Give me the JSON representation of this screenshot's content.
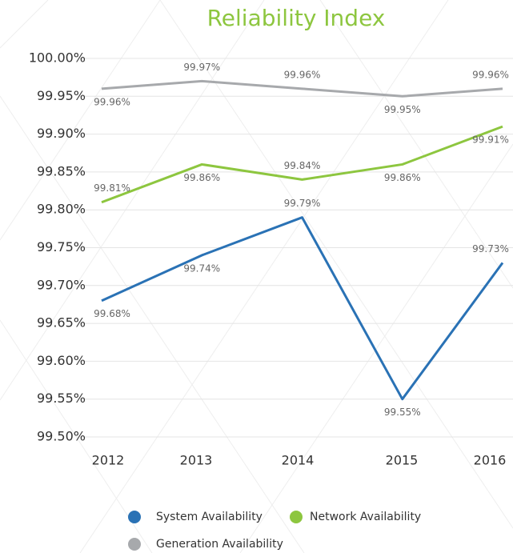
{
  "chart_data": {
    "type": "line",
    "title": "Reliability Index",
    "categories": [
      "2012",
      "2013",
      "2014",
      "2015",
      "2016"
    ],
    "series": [
      {
        "name": "System Availability",
        "color": "#2a72b5",
        "values": [
          99.68,
          99.74,
          99.79,
          99.55,
          99.73
        ],
        "value_labels": [
          "99.68%",
          "99.74%",
          "99.79%",
          "99.55%",
          "99.73%"
        ]
      },
      {
        "name": "Network Availability",
        "color": "#8dc63f",
        "values": [
          99.81,
          99.86,
          99.84,
          99.86,
          99.91
        ],
        "value_labels": [
          "99.81%",
          "99.86%",
          "99.84%",
          "99.86%",
          "99.91%"
        ]
      },
      {
        "name": "Generation Availability",
        "color": "#a7a9ac",
        "values": [
          99.96,
          99.97,
          99.96,
          99.95,
          99.96
        ],
        "value_labels": [
          "99.96%",
          "99.97%",
          "99.96%",
          "99.95%",
          "99.96%"
        ]
      }
    ],
    "ylim": [
      99.5,
      100.0
    ],
    "yticks": [
      {
        "value": 99.5,
        "label": "99.50%"
      },
      {
        "value": 99.55,
        "label": "99.55%"
      },
      {
        "value": 99.6,
        "label": "99.60%"
      },
      {
        "value": 99.65,
        "label": "99.65%"
      },
      {
        "value": 99.7,
        "label": "99.70%"
      },
      {
        "value": 99.75,
        "label": "99.75%"
      },
      {
        "value": 99.8,
        "label": "99.80%"
      },
      {
        "value": 99.85,
        "label": "99.85%"
      },
      {
        "value": 99.9,
        "label": "99.90%"
      },
      {
        "value": 99.95,
        "label": "99.95%"
      },
      {
        "value": 100.0,
        "label": "100.00%"
      }
    ],
    "grid": true
  }
}
